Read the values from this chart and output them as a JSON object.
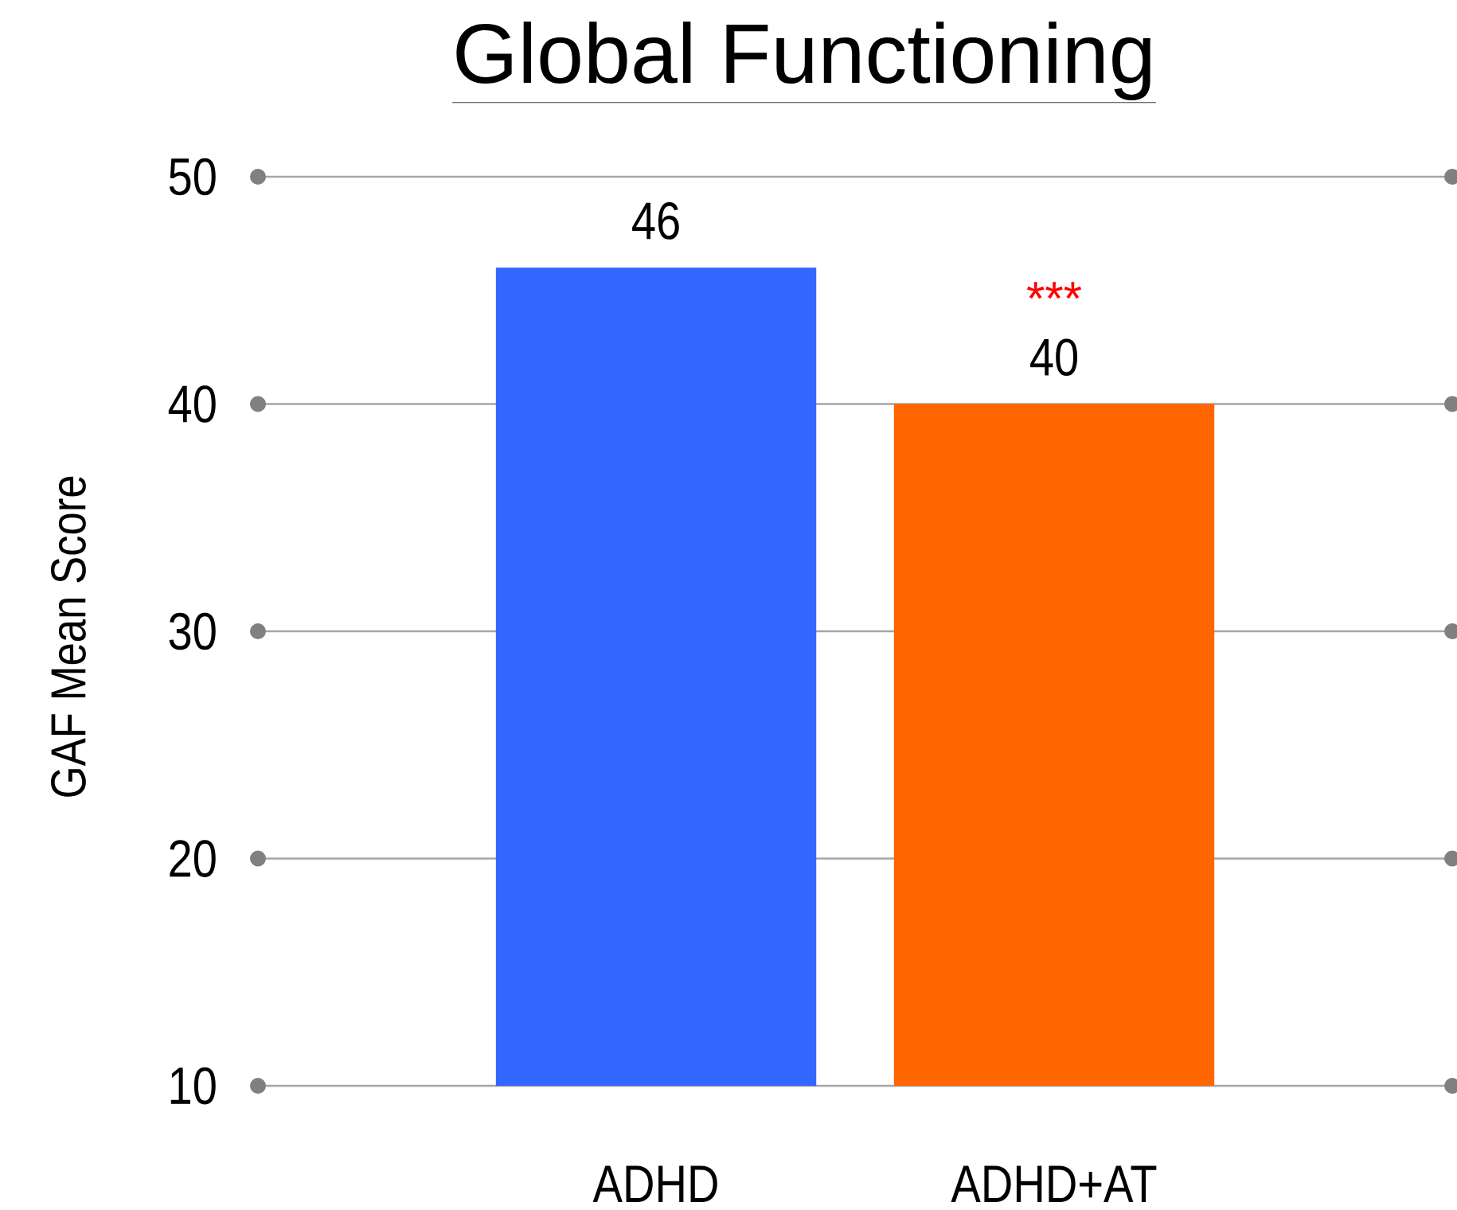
{
  "chart_data": {
    "type": "bar",
    "title": "Global Functioning",
    "ylabel": "GAF Mean Score",
    "categories": [
      "ADHD",
      "ADHD+AT"
    ],
    "values": [
      46,
      40
    ],
    "colors": [
      "#3366ff",
      "#ff6600"
    ],
    "ylim": [
      10,
      50
    ],
    "yticks": [
      10,
      20,
      30,
      40,
      50
    ],
    "grid": "y",
    "data_labels": true,
    "annotations": [
      {
        "text": "***",
        "x": "ADHD+AT",
        "y": 40
      }
    ]
  }
}
